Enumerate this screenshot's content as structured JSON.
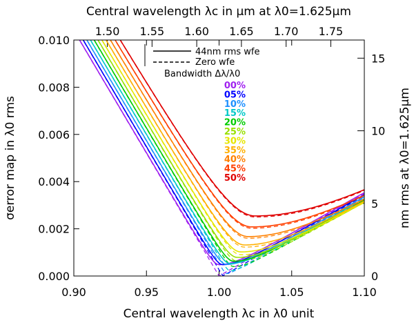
{
  "chart_data": {
    "type": "line",
    "title_top": "Central wavelength λc in μm at λ0=1.625μm",
    "xlabel": "Central wavelength λc in λ0 unit",
    "ylabel": "σerror map in λ0 rms",
    "ylabel_right": "nm rms at λ0=1.625μm",
    "xlim": [
      0.9,
      1.1
    ],
    "ylim": [
      0.0,
      0.01
    ],
    "x_ticks": [
      "0.90",
      "0.95",
      "1.00",
      "1.05",
      "1.10"
    ],
    "y_ticks": [
      "0.000",
      "0.002",
      "0.004",
      "0.006",
      "0.008",
      "0.010"
    ],
    "top_ticks": [
      "1.50",
      "1.55",
      "1.60",
      "1.65",
      "1.70",
      "1.75"
    ],
    "right_ticks": [
      "0",
      "5",
      "10",
      "15"
    ],
    "top_axis_range_um": [
      1.4625,
      1.7875
    ],
    "right_axis_range_nm": [
      0,
      16.25
    ],
    "legend": {
      "solid_label": "44nm rms wfe",
      "dashed_label": "Zero wfe",
      "bandwidth_title": "Bandwidth Δλ/λ0"
    },
    "model": {
      "zero_wfe_slope_left": 0.104,
      "zero_wfe_slope_right": 0.035,
      "wfe_floor_44nm": 0.00048,
      "optimum_shift_per_bandwidth": 0.05,
      "bandwidth_floor_factor": 0.01
    },
    "series": [
      {
        "name": "00%",
        "bandwidth": 0.0,
        "color": "#a020f0"
      },
      {
        "name": "05%",
        "bandwidth": 0.05,
        "color": "#0000ff"
      },
      {
        "name": "10%",
        "bandwidth": 0.1,
        "color": "#1e90ff"
      },
      {
        "name": "15%",
        "bandwidth": 0.15,
        "color": "#00c8c8"
      },
      {
        "name": "20%",
        "bandwidth": 0.2,
        "color": "#00cc00"
      },
      {
        "name": "25%",
        "bandwidth": 0.25,
        "color": "#99e000"
      },
      {
        "name": "30%",
        "bandwidth": 0.3,
        "color": "#e6e600"
      },
      {
        "name": "35%",
        "bandwidth": 0.35,
        "color": "#ffb000"
      },
      {
        "name": "40%",
        "bandwidth": 0.4,
        "color": "#ff8000"
      },
      {
        "name": "45%",
        "bandwidth": 0.45,
        "color": "#ff4000"
      },
      {
        "name": "50%",
        "bandwidth": 0.5,
        "color": "#e00000"
      }
    ]
  }
}
